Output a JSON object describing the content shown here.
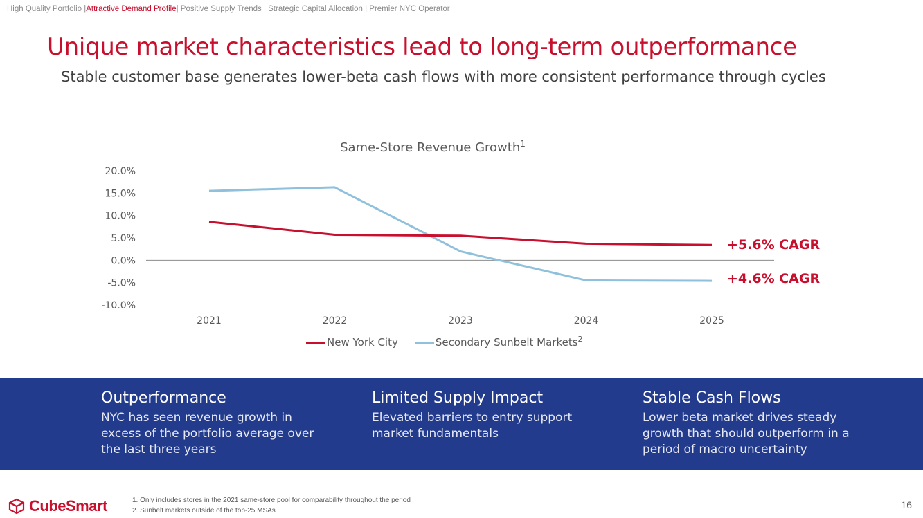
{
  "nav": {
    "items": [
      {
        "label": "High Quality Portfolio |",
        "active": false
      },
      {
        "label": "Attractive Demand Profile",
        "active": true
      },
      {
        "label": "| Positive Supply Trends | Strategic Capital Allocation | Premier NYC Operator",
        "active": false
      }
    ]
  },
  "header": {
    "title": "Unique market characteristics lead to long-term outperformance",
    "subtitle": "Stable customer base generates lower-beta cash flows with more consistent performance through cycles"
  },
  "chart_data": {
    "type": "line",
    "title": "Same-Store Revenue Growth",
    "title_sup": "1",
    "categories": [
      "2021",
      "2022",
      "2023",
      "2024",
      "2025"
    ],
    "y_ticks": [
      "20.0%",
      "15.0%",
      "10.0%",
      "5.0%",
      "0.0%",
      "-5.0%",
      "-10.0%"
    ],
    "ylim": [
      -10,
      20
    ],
    "grid": false,
    "legend_position": "bottom",
    "series": [
      {
        "name": "New York City",
        "sup": "",
        "color": "#c8102e",
        "values": [
          8.6,
          5.7,
          5.5,
          3.7,
          3.4
        ]
      },
      {
        "name": "Secondary Sunbelt Markets",
        "sup": "2",
        "color": "#8fc1dc",
        "values": [
          15.5,
          16.3,
          2.0,
          -4.5,
          -4.6
        ]
      }
    ],
    "annotations": [
      "+5.6% CAGR",
      "+4.6% CAGR"
    ]
  },
  "highlights": [
    {
      "title": "Outperformance",
      "body": "NYC has seen revenue growth in excess of the portfolio average over the last three years"
    },
    {
      "title": "Limited Supply Impact",
      "body": "Elevated barriers to entry support market fundamentals"
    },
    {
      "title": "Stable Cash Flows",
      "body": "Lower beta market drives steady growth that should outperform in a period of macro uncertainty"
    }
  ],
  "footer": {
    "logo_text": "CubeSmart",
    "notes": [
      "1.   Only includes stores in the 2021 same-store pool for comparability throughout the period",
      "2.   Sunbelt markets outside of the top-25 MSAs"
    ],
    "page_number": "16"
  },
  "colors": {
    "brand_red": "#c8102e",
    "band_blue": "#233b8c",
    "text_gray": "#595959"
  },
  "icons": {
    "logo": "cube-logo-icon"
  }
}
